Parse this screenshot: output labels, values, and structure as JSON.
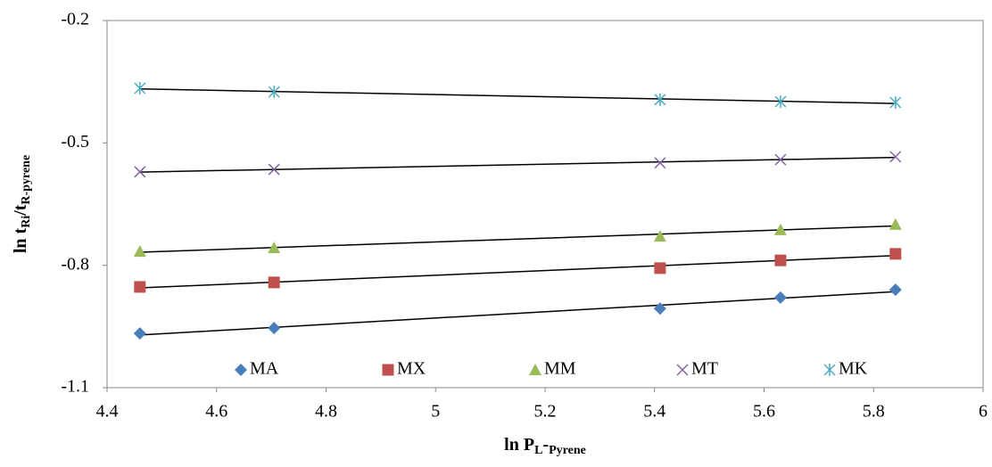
{
  "chart_data": {
    "type": "scatter",
    "x_label_parts": [
      {
        "text": "ln P"
      },
      {
        "text": "L",
        "sub": true
      },
      {
        "text": "-"
      },
      {
        "text": "Pyrene",
        "sub": true
      }
    ],
    "y_label_parts": [
      {
        "text": "ln t"
      },
      {
        "text": "Ri",
        "sub": true
      },
      {
        "text": "/t"
      },
      {
        "text": "R-pyrene",
        "sub": true
      }
    ],
    "x": [
      4.46,
      4.705,
      5.41,
      5.63,
      5.84
    ],
    "series": [
      {
        "name": "MA",
        "color": "#4a7ebb",
        "marker": "diamond",
        "values": [
          -0.967,
          -0.954,
          -0.906,
          -0.879,
          -0.86
        ]
      },
      {
        "name": "MX",
        "color": "#c0504d",
        "marker": "square",
        "values": [
          -0.853,
          -0.842,
          -0.807,
          -0.788,
          -0.772
        ]
      },
      {
        "name": "MM",
        "color": "#9bbb59",
        "marker": "triangle",
        "values": [
          -0.766,
          -0.757,
          -0.729,
          -0.713,
          -0.7
        ]
      },
      {
        "name": "MT",
        "color": "#8064a2",
        "marker": "x",
        "values": [
          -0.571,
          -0.565,
          -0.549,
          -0.541,
          -0.534
        ]
      },
      {
        "name": "MK",
        "color": "#4bacc6",
        "marker": "asterisk",
        "values": [
          -0.366,
          -0.375,
          -0.394,
          -0.399,
          -0.401
        ]
      }
    ],
    "xlim": [
      4.4,
      6
    ],
    "xticks": [
      4.4,
      4.6,
      4.8,
      5,
      5.2,
      5.4,
      5.6,
      5.8,
      6
    ],
    "ylim": [
      -1.1,
      -0.2
    ],
    "yticks": [
      -1.1,
      -0.8,
      -0.5,
      -0.2
    ],
    "trendline": true,
    "grid": false,
    "legend": "bottom"
  }
}
